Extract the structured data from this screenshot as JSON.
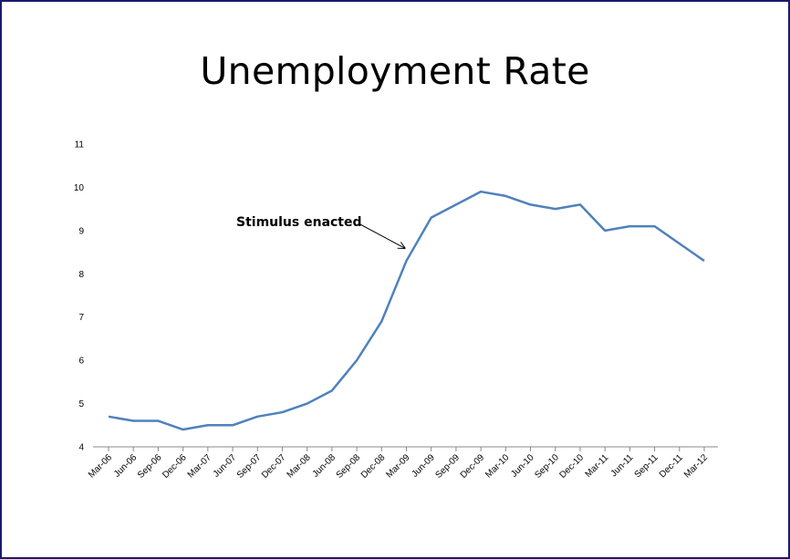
{
  "chart_data": {
    "type": "line",
    "title": "Unemployment Rate",
    "xlabel": "",
    "ylabel": "",
    "ylim": [
      4,
      11
    ],
    "yticks": [
      "4",
      "5",
      "6",
      "7",
      "8",
      "9",
      "10",
      "11"
    ],
    "grid": false,
    "legend": "none",
    "line_color": "#4f81bd",
    "categories": [
      "Mar-06",
      "Jun-06",
      "Sep-06",
      "Dec-06",
      "Mar-07",
      "Jun-07",
      "Sep-07",
      "Dec-07",
      "Mar-08",
      "Jun-08",
      "Sep-08",
      "Dec-08",
      "Mar-09",
      "Jun-09",
      "Sep-09",
      "Dec-09",
      "Mar-10",
      "Jun-10",
      "Sep-10",
      "Dec-10",
      "Mar-11",
      "Jun-11",
      "Sep-11",
      "Dec-11",
      "Mar-12"
    ],
    "values": [
      4.7,
      4.6,
      4.6,
      4.4,
      4.5,
      4.5,
      4.7,
      4.8,
      5.0,
      5.3,
      6.0,
      6.9,
      8.3,
      9.3,
      9.6,
      9.9,
      9.8,
      9.6,
      9.5,
      9.6,
      9.0,
      9.1,
      9.1,
      8.7,
      8.3
    ],
    "annotations": [
      {
        "text": "Stimulus enacted",
        "points_to": "Mar-09"
      }
    ]
  }
}
